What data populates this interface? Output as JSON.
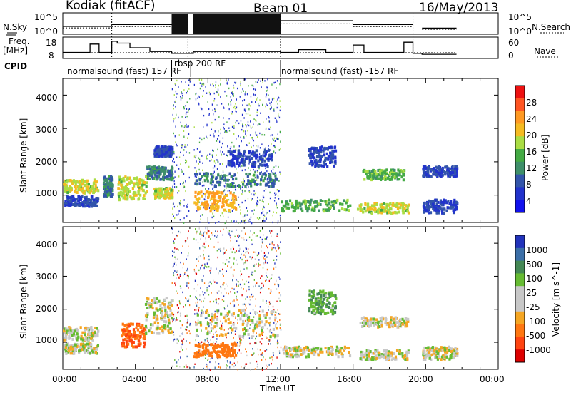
{
  "header": {
    "station": "Kodiak (fitACF)",
    "beam": "Beam 01",
    "date": "16/May/2013"
  },
  "top_panels": {
    "nsky_label": "N.Sky",
    "nsearch_label": "N.Search",
    "nsky_ticks": [
      "10^5",
      "10^0"
    ],
    "nsearch_ticks": [
      "10^5",
      "10^0"
    ],
    "freq_label": "Freq.",
    "freq_unit": "[MHz]",
    "freq_ticks": [
      "18",
      "8"
    ],
    "nave_label": "Nave",
    "nave_ticks": [
      "60",
      "0"
    ],
    "cpid_label": "CPID",
    "cpid_segments": [
      {
        "text": "normalsound (fast) 157 RF",
        "start_hr": 0.0,
        "end_hr": 6.0
      },
      {
        "text": "rbsp 200 RF",
        "start_hr": 6.0,
        "end_hr": 7.05
      },
      {
        "text": "normalsound (fast) -157 RF",
        "start_hr": 12.0,
        "end_hr": 24.0
      }
    ]
  },
  "axes": {
    "xlabel": "Time UT",
    "x_ticks": [
      "00:00",
      "04:00",
      "08:00",
      "12:00",
      "16:00",
      "20:00",
      "00:00"
    ],
    "x_range_hr": [
      0,
      24
    ],
    "ylabel": "Slant Range [km]",
    "y_range_km": [
      180,
      4500
    ],
    "y_ticks": [
      1000,
      2000,
      3000,
      4000
    ]
  },
  "colorbars": {
    "power": {
      "label": "Power [dB]",
      "tick_labels": [
        "28",
        "24",
        "20",
        "16",
        "12",
        "8",
        "4"
      ],
      "colors": [
        "#ee1111",
        "#ff5522",
        "#ff9922",
        "#f5bb22",
        "#aadd44",
        "#44aa44",
        "#3f8f6a",
        "#3355aa",
        "#2233cc",
        "#1111ee"
      ]
    },
    "velocity": {
      "label": "Velocity [m s^-1]",
      "tick_labels": [
        "1000",
        "500",
        "100",
        "25",
        "-25",
        "-100",
        "-500",
        "-1000"
      ],
      "colors": [
        "#2233bb",
        "#3b6fa8",
        "#448855",
        "#66bb33",
        "#c8c8c8",
        "#c8c8c8",
        "#f5a623",
        "#ff7711",
        "#ff4411",
        "#dd0000"
      ]
    }
  },
  "chart_data": {
    "type": "heatmap",
    "x_unit": "hours UT",
    "y_unit": "km",
    "power_regions": [
      {
        "x0": 0.0,
        "x1": 1.9,
        "y0": 1100,
        "y1": 1500,
        "level": 20
      },
      {
        "x0": 0.0,
        "x1": 1.9,
        "y0": 700,
        "y1": 1000,
        "level": 8
      },
      {
        "x0": 2.2,
        "x1": 2.7,
        "y0": 1000,
        "y1": 1600,
        "level": 12
      },
      {
        "x0": 3.0,
        "x1": 4.6,
        "y0": 900,
        "y1": 1600,
        "level": 20
      },
      {
        "x0": 4.6,
        "x1": 6.0,
        "y0": 1500,
        "y1": 1900,
        "level": 12
      },
      {
        "x0": 5.0,
        "x1": 6.0,
        "y0": 2200,
        "y1": 2500,
        "level": 8
      },
      {
        "x0": 5.0,
        "x1": 6.0,
        "y0": 950,
        "y1": 1250,
        "level": 20
      },
      {
        "x0": 7.2,
        "x1": 9.5,
        "y0": 550,
        "y1": 1150,
        "level": 24
      },
      {
        "x0": 7.2,
        "x1": 11.8,
        "y0": 1300,
        "y1": 1700,
        "level": 12
      },
      {
        "x0": 9.0,
        "x1": 11.5,
        "y0": 1900,
        "y1": 2400,
        "level": 8
      },
      {
        "x0": 12.0,
        "x1": 15.8,
        "y0": 550,
        "y1": 900,
        "level": 16
      },
      {
        "x0": 13.5,
        "x1": 15.0,
        "y0": 1900,
        "y1": 2500,
        "level": 8
      },
      {
        "x0": 16.5,
        "x1": 18.8,
        "y0": 1500,
        "y1": 1800,
        "level": 16
      },
      {
        "x0": 16.2,
        "x1": 19.0,
        "y0": 500,
        "y1": 800,
        "level": 20
      },
      {
        "x0": 19.8,
        "x1": 21.7,
        "y0": 1600,
        "y1": 1900,
        "level": 8
      },
      {
        "x0": 19.8,
        "x1": 21.7,
        "y0": 500,
        "y1": 900,
        "level": 8
      }
    ],
    "velocity_regions": [
      {
        "x0": 0.0,
        "x1": 1.9,
        "y0": 1100,
        "y1": 1500,
        "velocity": 0
      },
      {
        "x0": 0.0,
        "x1": 1.9,
        "y0": 700,
        "y1": 1000,
        "velocity": 0
      },
      {
        "x0": 3.2,
        "x1": 4.5,
        "y0": 900,
        "y1": 1600,
        "velocity": -500
      },
      {
        "x0": 4.5,
        "x1": 6.0,
        "y0": 1300,
        "y1": 2400,
        "velocity": 0
      },
      {
        "x0": 7.2,
        "x1": 9.5,
        "y0": 600,
        "y1": 1000,
        "velocity": -300
      },
      {
        "x0": 7.2,
        "x1": 11.8,
        "y0": 1200,
        "y1": 2000,
        "velocity": 0
      },
      {
        "x0": 12.0,
        "x1": 15.8,
        "y0": 600,
        "y1": 900,
        "velocity": 0
      },
      {
        "x0": 13.5,
        "x1": 15.0,
        "y0": 1900,
        "y1": 2600,
        "velocity": 80
      },
      {
        "x0": 16.3,
        "x1": 19.0,
        "y0": 1500,
        "y1": 1800,
        "velocity": 0
      },
      {
        "x0": 16.3,
        "x1": 19.0,
        "y0": 500,
        "y1": 800,
        "velocity": 0
      },
      {
        "x0": 19.8,
        "x1": 21.7,
        "y0": 500,
        "y1": 900,
        "velocity": 0
      }
    ],
    "noise_band_hr": [
      6.0,
      12.0
    ],
    "data_gaps_hr": [
      [
        1.9,
        2.2
      ],
      [
        2.7,
        3.0
      ],
      [
        7.0,
        7.2
      ],
      [
        19.3,
        19.8
      ],
      [
        21.7,
        24.0
      ]
    ],
    "nsky_steps": [
      {
        "x0": 0.0,
        "x1": 2.7,
        "v": 0.35
      },
      {
        "x0": 2.7,
        "x1": 6.0,
        "v": 0.45
      },
      {
        "x0": 6.0,
        "x1": 6.9,
        "v": 1.0
      },
      {
        "x0": 7.2,
        "x1": 12.0,
        "v": 0.95
      },
      {
        "x0": 12.0,
        "x1": 16.0,
        "v": 0.65
      },
      {
        "x0": 16.0,
        "x1": 19.3,
        "v": 0.45
      },
      {
        "x0": 19.8,
        "x1": 21.7,
        "v": 0.25
      }
    ],
    "freq_mhz_steps": [
      {
        "x0": 0.0,
        "x1": 1.5,
        "v": 10.5
      },
      {
        "x0": 1.5,
        "x1": 2.0,
        "v": 15.0
      },
      {
        "x0": 2.0,
        "x1": 2.7,
        "v": 10.5
      },
      {
        "x0": 2.7,
        "x1": 3.0,
        "v": 16.5
      },
      {
        "x0": 3.0,
        "x1": 3.7,
        "v": 15.5
      },
      {
        "x0": 3.7,
        "x1": 4.8,
        "v": 13.0
      },
      {
        "x0": 4.8,
        "x1": 6.0,
        "v": 11.0
      },
      {
        "x0": 6.0,
        "x1": 7.2,
        "v": 10.0
      },
      {
        "x0": 7.2,
        "x1": 12.0,
        "v": 11.0
      },
      {
        "x0": 12.0,
        "x1": 13.0,
        "v": 10.5
      },
      {
        "x0": 13.0,
        "x1": 14.5,
        "v": 12.0
      },
      {
        "x0": 14.5,
        "x1": 16.0,
        "v": 10.5
      },
      {
        "x0": 16.0,
        "x1": 16.6,
        "v": 14.5
      },
      {
        "x0": 16.6,
        "x1": 18.8,
        "v": 10.5
      },
      {
        "x0": 18.8,
        "x1": 19.3,
        "v": 16.0
      },
      {
        "x0": 19.3,
        "x1": 19.8,
        "v": 10.0
      },
      {
        "x0": 19.8,
        "x1": 21.7,
        "v": 9.5
      }
    ]
  }
}
